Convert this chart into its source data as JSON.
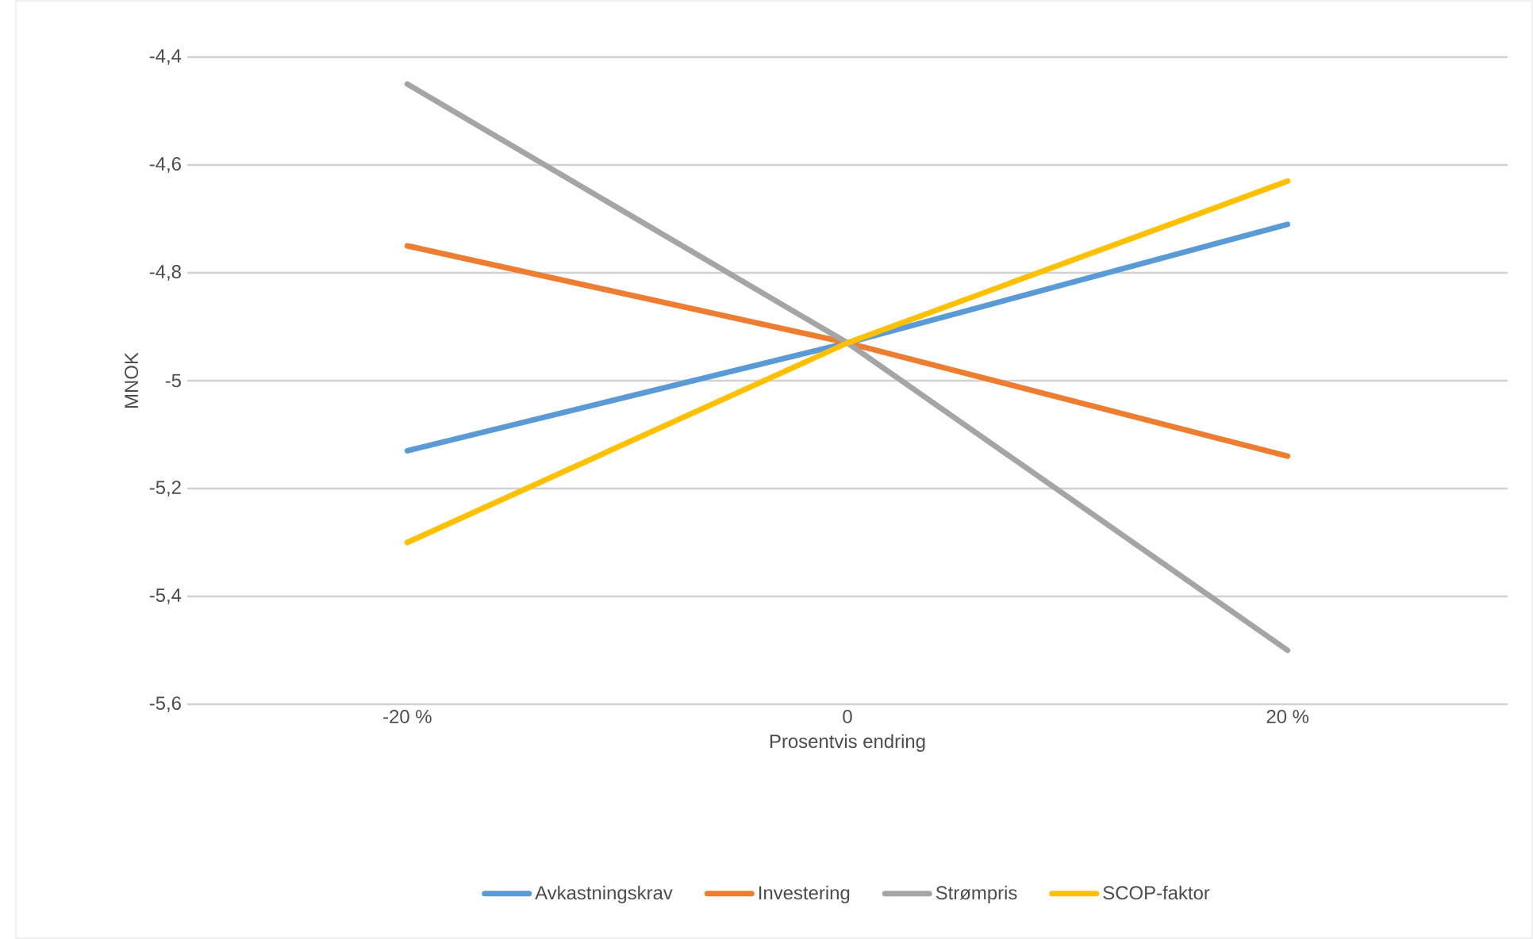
{
  "chart_data": {
    "type": "line",
    "xlabel": "Prosentvis endring",
    "ylabel": "MNOK",
    "categories": [
      "-20 %",
      "0",
      "20 %"
    ],
    "series": [
      {
        "name": "Avkastningskrav",
        "color": "#5b9bd5",
        "values": [
          -5.13,
          -4.93,
          -4.71
        ]
      },
      {
        "name": "Investering",
        "color": "#ed7d31",
        "values": [
          -4.75,
          -4.93,
          -5.14
        ]
      },
      {
        "name": "Strømpris",
        "color": "#a5a5a5",
        "values": [
          -4.45,
          -4.93,
          -5.5
        ]
      },
      {
        "name": "SCOP-faktor",
        "color": "#ffc000",
        "values": [
          -5.3,
          -4.93,
          -4.63
        ]
      }
    ],
    "ylim": [
      -5.6,
      -4.4
    ],
    "yticks": [
      {
        "value": -5.6,
        "label": "-5,6"
      },
      {
        "value": -5.4,
        "label": "-5,4"
      },
      {
        "value": -5.2,
        "label": "-5,2"
      },
      {
        "value": -5,
        "label": "-5"
      },
      {
        "value": -4.8,
        "label": "-4,8"
      },
      {
        "value": -4.6,
        "label": "-4,6"
      },
      {
        "value": -4.4,
        "label": "-4,4"
      }
    ],
    "grid": "y",
    "legend": "bottom",
    "marker": "none",
    "line_style": "solid"
  }
}
